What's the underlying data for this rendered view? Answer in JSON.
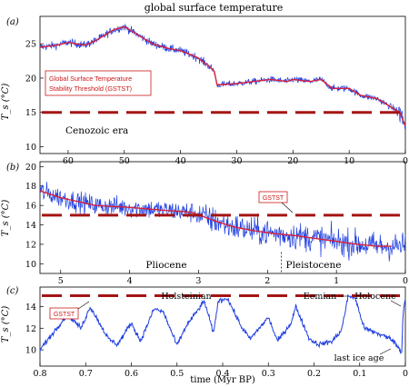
{
  "figure_title": "global surface temperature",
  "x_axis_label": "time (Myr BP)",
  "colors": {
    "signal": "#1f3fe0",
    "trend": "#d8203a",
    "threshold": "#a51414",
    "callout_border": "#cc1a1a",
    "callout_text": "#cc1a1a",
    "axis": "#000000"
  },
  "chart_data": [
    {
      "panel": "(a)",
      "type": "line",
      "xlim": [
        65,
        0
      ],
      "ylim": [
        9,
        29
      ],
      "ylabel": "T_s (°C)",
      "xticks": [
        60,
        50,
        40,
        30,
        20,
        10,
        0
      ],
      "yticks": [
        10,
        15,
        20,
        25
      ],
      "threshold": 15,
      "callout": "Global Surface Temperature Stability Threshold (GSTST)",
      "callout_lines": [
        "Global Surface Temperature",
        "Stability Threshold (GSTST)"
      ],
      "annotations": [
        "Cenozoic era"
      ],
      "series": [
        {
          "x": [
            65,
            62,
            60,
            57,
            55,
            52,
            50,
            48,
            45,
            42,
            40,
            37,
            35,
            34,
            33.5,
            30,
            27,
            24,
            21,
            20,
            17,
            15,
            13,
            10,
            8,
            5,
            3,
            1,
            0
          ],
          "y": [
            24.5,
            24.8,
            25.2,
            24.8,
            25.5,
            27,
            27.5,
            26.5,
            25,
            24.3,
            24,
            23,
            21.8,
            21,
            19,
            19.2,
            19.5,
            19.8,
            19.5,
            19.8,
            19.5,
            19.8,
            18.5,
            18.5,
            17.5,
            17,
            16,
            15,
            13
          ]
        }
      ]
    },
    {
      "panel": "(b)",
      "type": "line",
      "xlim": [
        5.3,
        0
      ],
      "ylim": [
        9,
        20.5
      ],
      "ylabel": "T_s (°C)",
      "xticks": [
        5,
        4,
        3,
        2,
        1,
        0
      ],
      "yticks": [
        10,
        12,
        14,
        16,
        18,
        20
      ],
      "threshold": 15,
      "callout": "GSTST",
      "annotations": [
        "Pliocene",
        "Pleistocene"
      ],
      "boundary_x": 1.8,
      "series": [
        {
          "x": [
            5.3,
            5.0,
            4.5,
            4.0,
            3.5,
            3.1,
            2.8,
            2.5,
            2.2,
            1.9,
            1.6,
            1.3,
            1.0,
            0.7,
            0.4,
            0.2
          ],
          "y": [
            17.5,
            16.8,
            16,
            15.8,
            15.5,
            15.3,
            14.5,
            13.8,
            13.4,
            13.1,
            12.9,
            12.6,
            12.3,
            12,
            11.8,
            11.8
          ]
        }
      ]
    },
    {
      "panel": "(c)",
      "type": "line",
      "xlim": [
        0.8,
        0
      ],
      "ylim": [
        8.5,
        15.8
      ],
      "ylabel": "T_s (°C)",
      "xticks": [
        0.8,
        0.7,
        0.6,
        0.5,
        0.4,
        0.3,
        0.2,
        0.1,
        0
      ],
      "yticks": [
        10,
        12,
        14
      ],
      "threshold": 15,
      "callout": "GSTST",
      "annotations": [
        "Holsteinian",
        "Eemian",
        "Holocene",
        "last ice age"
      ],
      "series": [
        {
          "x": [
            0.8,
            0.76,
            0.74,
            0.71,
            0.69,
            0.65,
            0.63,
            0.6,
            0.58,
            0.55,
            0.53,
            0.5,
            0.48,
            0.44,
            0.42,
            0.41,
            0.39,
            0.36,
            0.34,
            0.33,
            0.3,
            0.28,
            0.25,
            0.24,
            0.21,
            0.19,
            0.16,
            0.14,
            0.125,
            0.11,
            0.09,
            0.06,
            0.03,
            0.02,
            0.012,
            0.008,
            0.005,
            0
          ],
          "y": [
            10,
            12.2,
            13.3,
            12,
            14,
            11,
            10.5,
            12.5,
            10.8,
            13.8,
            13.5,
            10.4,
            12.2,
            14.5,
            11.5,
            14.5,
            14.8,
            12.2,
            11,
            11.5,
            13,
            10.8,
            12.5,
            14,
            11,
            10.5,
            10.8,
            11.8,
            15,
            14.8,
            12,
            11.5,
            11,
            10.5,
            10,
            9.8,
            13.5,
            14.8
          ]
        }
      ]
    }
  ]
}
